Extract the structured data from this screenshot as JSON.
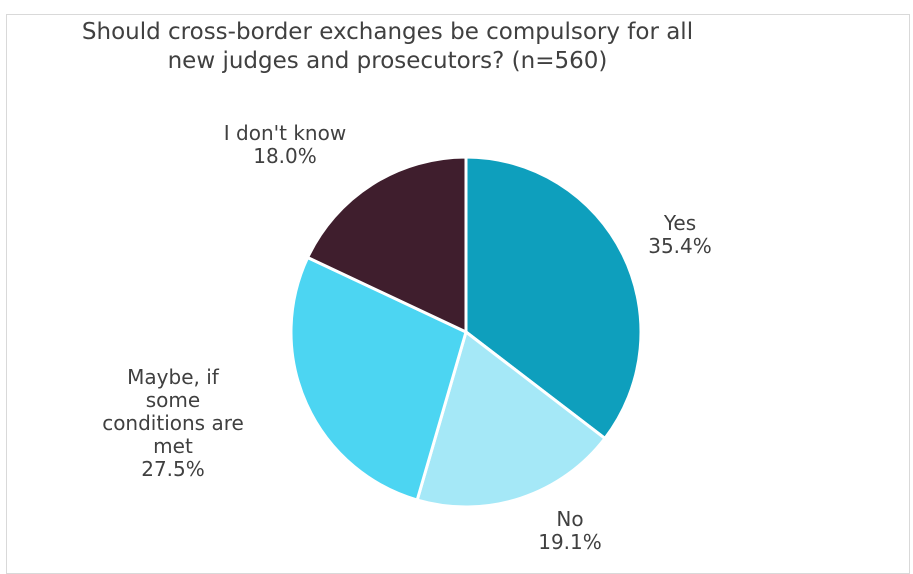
{
  "chart_data": {
    "type": "pie",
    "title": "Should cross-border exchanges be compulsory for all new judges and prosecutors? (n=560)",
    "title_lines": [
      "Should cross-border exchanges be compulsory for all",
      "new judges and prosecutors? (n=560)"
    ],
    "start_angle_deg": 0,
    "direction": "clockwise",
    "slices": [
      {
        "label": "Yes",
        "label_lines": [
          "Yes"
        ],
        "value": 35.4,
        "value_text": "35.4%",
        "color": "#0e9fbd"
      },
      {
        "label": "No",
        "label_lines": [
          "No"
        ],
        "value": 19.1,
        "value_text": "19.1%",
        "color": "#a5e8f7"
      },
      {
        "label": "Maybe, if some conditions are met",
        "label_lines": [
          "Maybe, if",
          "some",
          "conditions are",
          "met"
        ],
        "value": 27.5,
        "value_text": "27.5%",
        "color": "#4cd5f2"
      },
      {
        "label": "I don't know",
        "label_lines": [
          "I don't know"
        ],
        "value": 18.0,
        "value_text": "18.0%",
        "color": "#3f1e2d"
      }
    ],
    "legend": false
  }
}
